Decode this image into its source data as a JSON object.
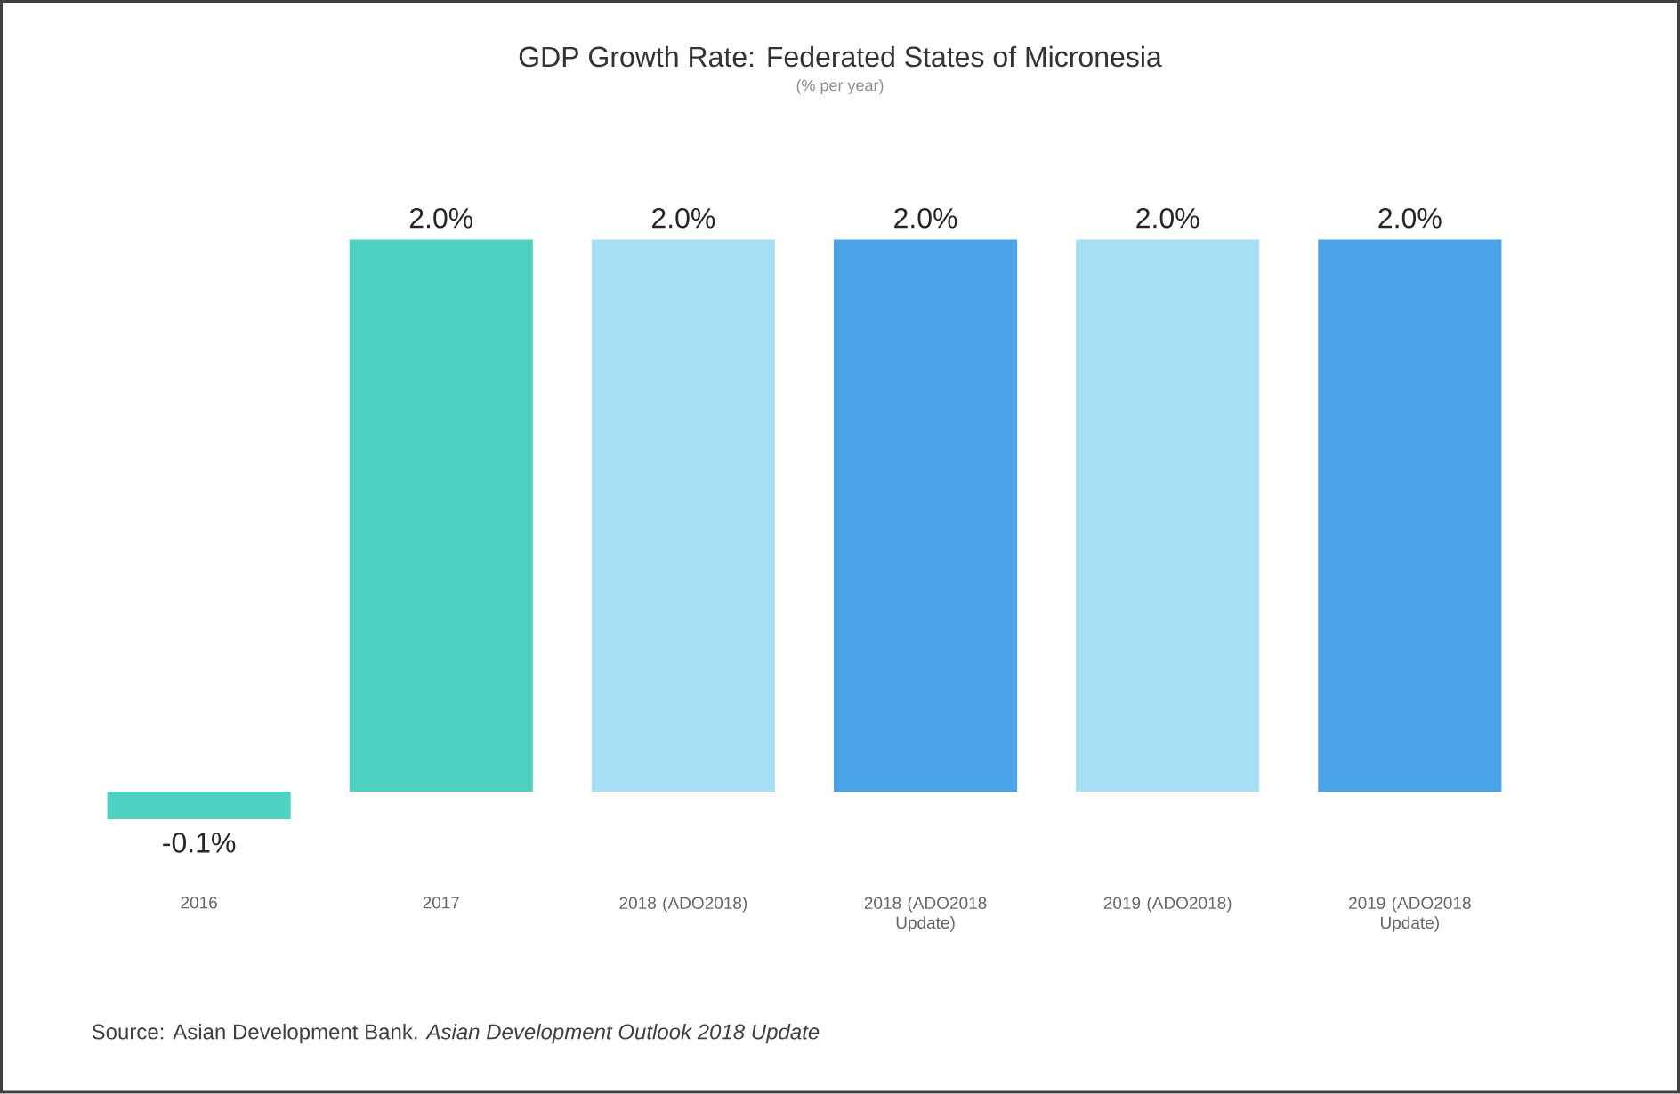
{
  "chart_data": {
    "type": "bar",
    "title": "GDP Growth Rate: Federated States of Micronesia",
    "subtitle": "(% per year)",
    "categories": [
      "2016",
      "2017",
      "2018 (ADO2018)",
      "2018 (ADO2018 Update)",
      "2019 (ADO2018)",
      "2019 (ADO2018 Update)"
    ],
    "values": [
      -0.1,
      2.0,
      2.0,
      2.0,
      2.0,
      2.0
    ],
    "value_labels": [
      "-0.1%",
      "2.0%",
      "2.0%",
      "2.0%",
      "2.0%",
      "2.0%"
    ],
    "colors": [
      "#4fd1c2",
      "#4fd1c2",
      "#a8def5",
      "#4aa3e8",
      "#a8def5",
      "#4aa3e8"
    ],
    "annotations": [
      "Source: Asian Development Bank. *Asian Development Outlook 2018 Update*"
    ]
  }
}
